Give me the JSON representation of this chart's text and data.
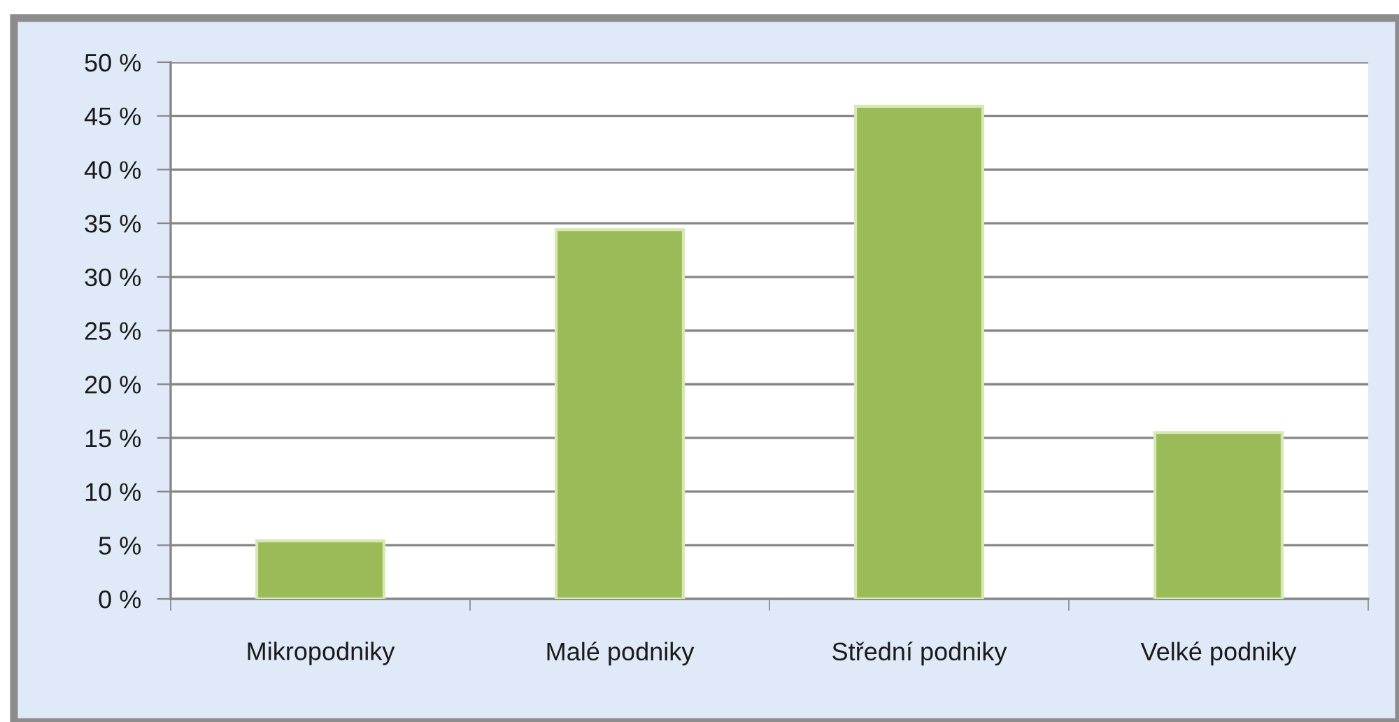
{
  "chart_data": {
    "type": "bar",
    "categories": [
      "Mikropodniky",
      "Malé podniky",
      "Střední podniky",
      "Velké podniky"
    ],
    "values": [
      5.4,
      34.4,
      45.9,
      15.5
    ],
    "color": "#9bbb59",
    "ylim": [
      0,
      50
    ],
    "yticks": [
      {
        "value": 0,
        "label": "0 %"
      },
      {
        "value": 5,
        "label": "5 %"
      },
      {
        "value": 10,
        "label": "10 %"
      },
      {
        "value": 15,
        "label": "15 %"
      },
      {
        "value": 20,
        "label": "20 %"
      },
      {
        "value": 25,
        "label": "25 %"
      },
      {
        "value": 30,
        "label": "30 %"
      },
      {
        "value": 35,
        "label": "35 %"
      },
      {
        "value": 40,
        "label": "40 %"
      },
      {
        "value": 45,
        "label": "45 %"
      },
      {
        "value": 50,
        "label": "50 %"
      }
    ],
    "grid": "y"
  }
}
